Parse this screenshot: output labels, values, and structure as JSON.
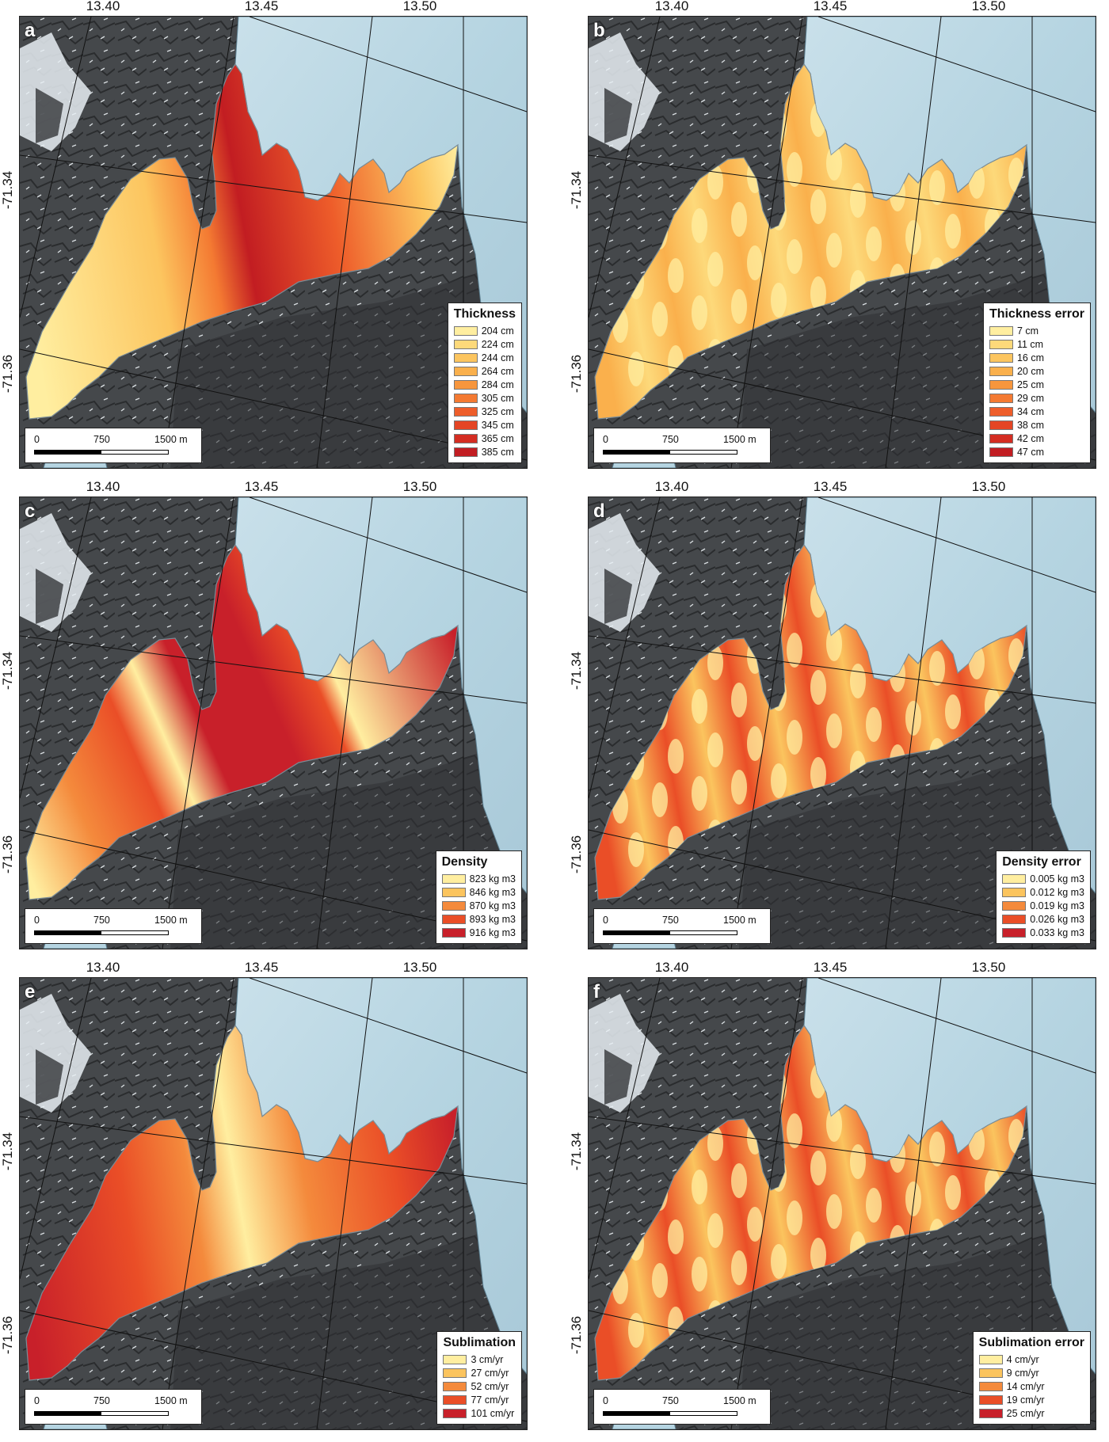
{
  "axes": {
    "lon_ticks": [
      "13.40",
      "13.45",
      "13.50"
    ],
    "lat_ticks": [
      "-71.34",
      "-71.36"
    ]
  },
  "scale_bar": {
    "labels": [
      "0",
      "750",
      "1500 m"
    ]
  },
  "panels": [
    {
      "letter": "a",
      "legend_title": "Thickness",
      "legend_items": [
        "204 cm",
        "224 cm",
        "244 cm",
        "264 cm",
        "284 cm",
        "305 cm",
        "325 cm",
        "345 cm",
        "365 cm",
        "385 cm"
      ],
      "legend_colors": [
        "#ffeea0",
        "#fdd97a",
        "#fcc55f",
        "#fab04c",
        "#f7963d",
        "#f47a32",
        "#ee5d2a",
        "#e44524",
        "#d42d22",
        "#c21d22"
      ],
      "pattern": "thickness"
    },
    {
      "letter": "b",
      "legend_title": "Thickness error",
      "legend_items": [
        "7 cm",
        "11 cm",
        "16 cm",
        "20 cm",
        "25 cm",
        "29 cm",
        "34 cm",
        "38 cm",
        "42 cm",
        "47 cm"
      ],
      "legend_colors": [
        "#ffeea0",
        "#fdd97a",
        "#fcc55f",
        "#fab04c",
        "#f7963d",
        "#f47a32",
        "#ee5d2a",
        "#e44524",
        "#d42d22",
        "#c21d22"
      ],
      "pattern": "stripes"
    },
    {
      "letter": "c",
      "legend_title": "Density",
      "legend_items": [
        "823 kg m3",
        "846 kg m3",
        "870 kg m3",
        "893 kg m3",
        "916 kg m3"
      ],
      "legend_colors": [
        "#ffeea0",
        "#fbc45e",
        "#f48a3c",
        "#ea4e27",
        "#c8202a"
      ],
      "pattern": "density"
    },
    {
      "letter": "d",
      "legend_title": "Density error",
      "legend_items": [
        "0.005 kg m3",
        "0.012 kg m3",
        "0.019 kg m3",
        "0.026 kg m3",
        "0.033 kg m3"
      ],
      "legend_colors": [
        "#ffeea0",
        "#fbc45e",
        "#f48a3c",
        "#ea4e27",
        "#c8202a"
      ],
      "pattern": "stripes"
    },
    {
      "letter": "e",
      "legend_title": "Sublimation",
      "legend_items": [
        "3 cm/yr",
        "27 cm/yr",
        "52 cm/yr",
        "77 cm/yr",
        "101 cm/yr"
      ],
      "legend_colors": [
        "#ffeea0",
        "#fbc45e",
        "#f48a3c",
        "#ea4e27",
        "#c8202a"
      ],
      "pattern": "sublimation"
    },
    {
      "letter": "f",
      "legend_title": "Sublimation error",
      "legend_items": [
        "4 cm/yr",
        "9 cm/yr",
        "14 cm/yr",
        "19 cm/yr",
        "25 cm/yr"
      ],
      "legend_colors": [
        "#ffeea0",
        "#fbc45e",
        "#f48a3c",
        "#ea4e27",
        "#c8202a"
      ],
      "pattern": "stripes"
    }
  ],
  "colors": {
    "rock": "#45484b",
    "ice": "#b5d4e1",
    "snow": "#e7eef3",
    "grid": "#111111"
  }
}
